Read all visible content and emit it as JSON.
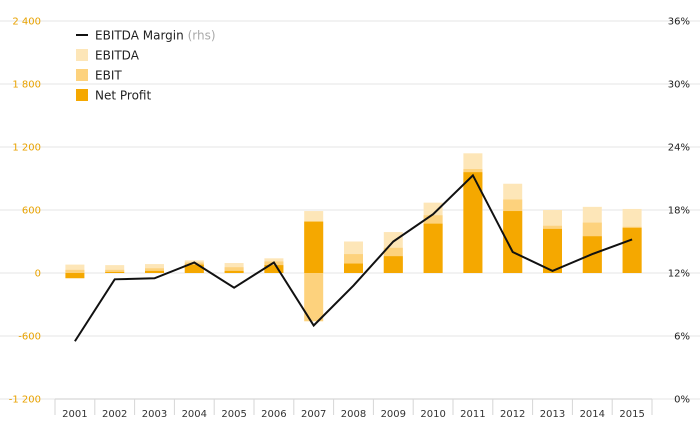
{
  "chart_data": {
    "type": "bar",
    "categories": [
      "2001",
      "2002",
      "2003",
      "2004",
      "2005",
      "2006",
      "2007",
      "2008",
      "2009",
      "2010",
      "2011",
      "2012",
      "2013",
      "2014",
      "2015"
    ],
    "series": [
      {
        "name": "EBITDA",
        "type": "bar",
        "values": [
          80,
          75,
          85,
          120,
          95,
          140,
          590,
          300,
          390,
          670,
          1140,
          850,
          600,
          630,
          610
        ]
      },
      {
        "name": "EBIT",
        "type": "bar",
        "values": [
          30,
          30,
          45,
          100,
          55,
          110,
          -460,
          180,
          240,
          550,
          990,
          700,
          450,
          480,
          440
        ]
      },
      {
        "name": "Net Profit",
        "type": "bar",
        "values": [
          -50,
          10,
          20,
          80,
          20,
          75,
          490,
          90,
          160,
          470,
          960,
          590,
          420,
          350,
          430
        ]
      },
      {
        "name": "EBITDA Margin",
        "name_suffix": "(rhs)",
        "type": "line",
        "axis": "right",
        "values": [
          5.5,
          11.4,
          11.5,
          13.0,
          10.6,
          13.0,
          7.0,
          10.8,
          15.0,
          17.6,
          21.3,
          14.0,
          12.2,
          13.8,
          15.2
        ]
      }
    ],
    "y_left": {
      "ticks": [
        "2 400",
        "1 800",
        "1 200",
        "600",
        "0",
        "-600",
        "-1 200"
      ],
      "range": [
        -1200,
        2400
      ]
    },
    "y_right": {
      "ticks": [
        "36%",
        "30%",
        "24%",
        "18%",
        "12%",
        "6%",
        "0%"
      ],
      "range": [
        0,
        36
      ]
    },
    "colors": {
      "ebitda": "#fde6b8",
      "ebit": "#fdd27d",
      "net_profit": "#f5a800",
      "line": "#111111",
      "left_axis": "#e8a200",
      "grid": "#e6e6e6"
    },
    "legend_position": "top-left",
    "grid": true
  }
}
